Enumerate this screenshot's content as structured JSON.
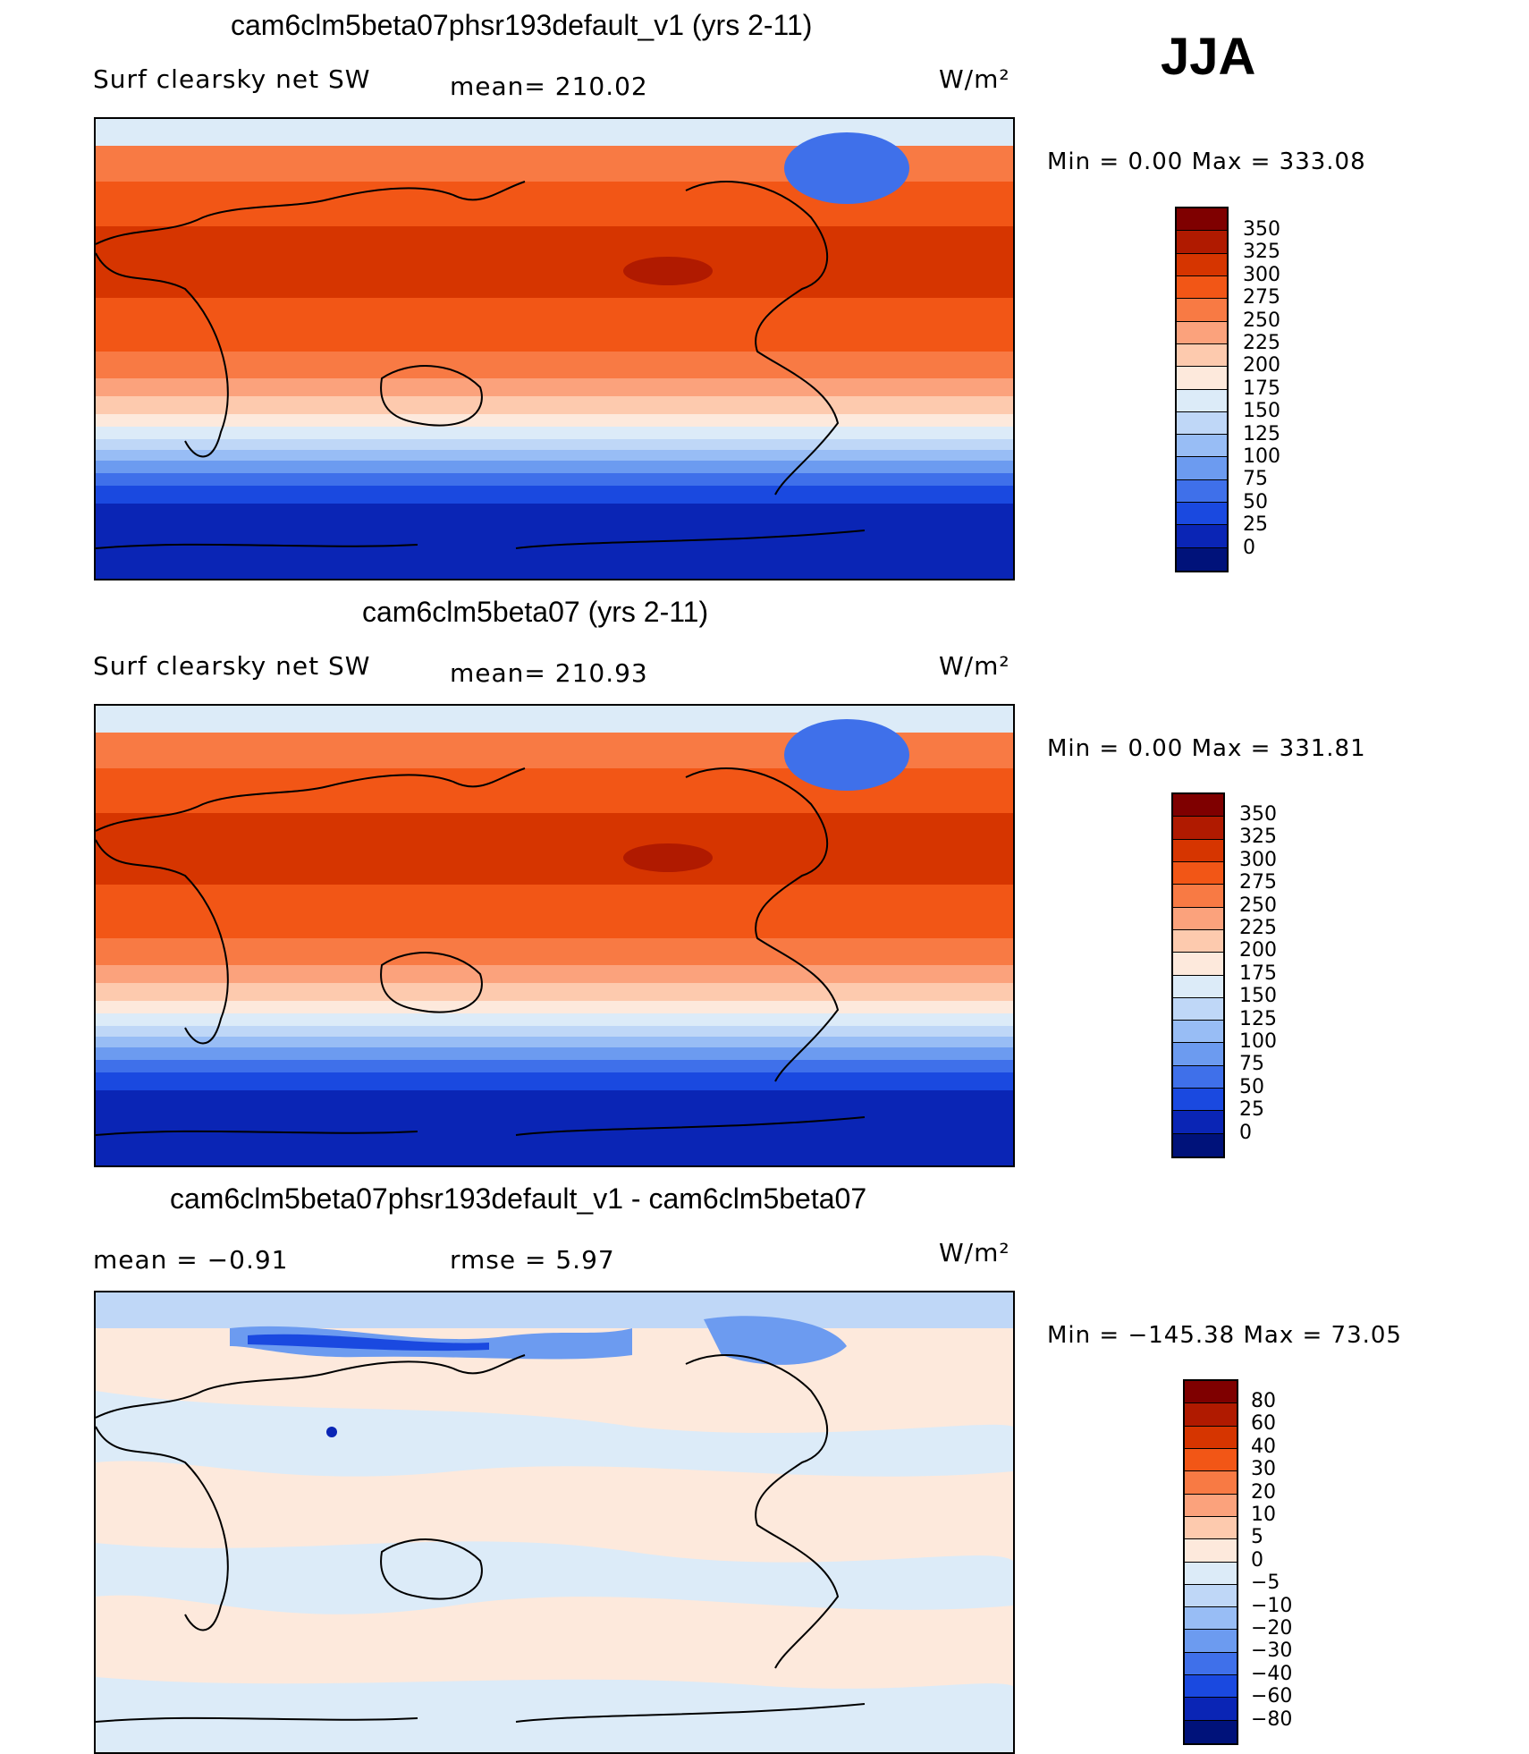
{
  "season": "JJA",
  "panels": [
    {
      "title": "cam6clm5beta07phsr193default_v1 (yrs 2-11)",
      "left_label": "Surf clearsky net SW",
      "mid_label": "mean= 210.02",
      "units": "W/m²",
      "minmax": "Min =     0.00  Max  =  333.08",
      "colorbar_labels": [
        "350",
        "325",
        "300",
        "275",
        "250",
        "225",
        "200",
        "175",
        "150",
        "125",
        "100",
        "75",
        "50",
        "25",
        "0"
      ]
    },
    {
      "title": "cam6clm5beta07 (yrs 2-11)",
      "left_label": "Surf clearsky net SW",
      "mid_label": "mean= 210.93",
      "units": "W/m²",
      "minmax": "Min =     0.00  Max  =  331.81",
      "colorbar_labels": [
        "350",
        "325",
        "300",
        "275",
        "250",
        "225",
        "200",
        "175",
        "150",
        "125",
        "100",
        "75",
        "50",
        "25",
        "0"
      ]
    },
    {
      "title": "cam6clm5beta07phsr193default_v1 - cam6clm5beta07",
      "left_label": "mean =   −0.91",
      "mid_label": "rmse =     5.97",
      "units": "W/m²",
      "minmax": "Min  = −145.38  Max  =    73.05",
      "colorbar_labels": [
        "80",
        "60",
        "40",
        "30",
        "20",
        "10",
        "5",
        "0",
        "−5",
        "−10",
        "−20",
        "−30",
        "−40",
        "−60",
        "−80"
      ]
    }
  ],
  "colors": {
    "abs_scale": [
      "#7f0000",
      "#b01a00",
      "#d63500",
      "#f25616",
      "#f87a44",
      "#fba27c",
      "#fdcaae",
      "#fde9dc",
      "#dcebf8",
      "#bfd7f7",
      "#98bdf5",
      "#6c9bf0",
      "#3f70ea",
      "#1a49e0",
      "#0a25b5",
      "#00127a"
    ],
    "diff_scale": [
      "#7f0000",
      "#b01a00",
      "#d63500",
      "#f25616",
      "#f87a44",
      "#fba27c",
      "#fdcaae",
      "#fde9dc",
      "#dcebf8",
      "#bfd7f7",
      "#98bdf5",
      "#6c9bf0",
      "#3f70ea",
      "#1a49e0",
      "#0a25b5",
      "#00127a"
    ]
  }
}
